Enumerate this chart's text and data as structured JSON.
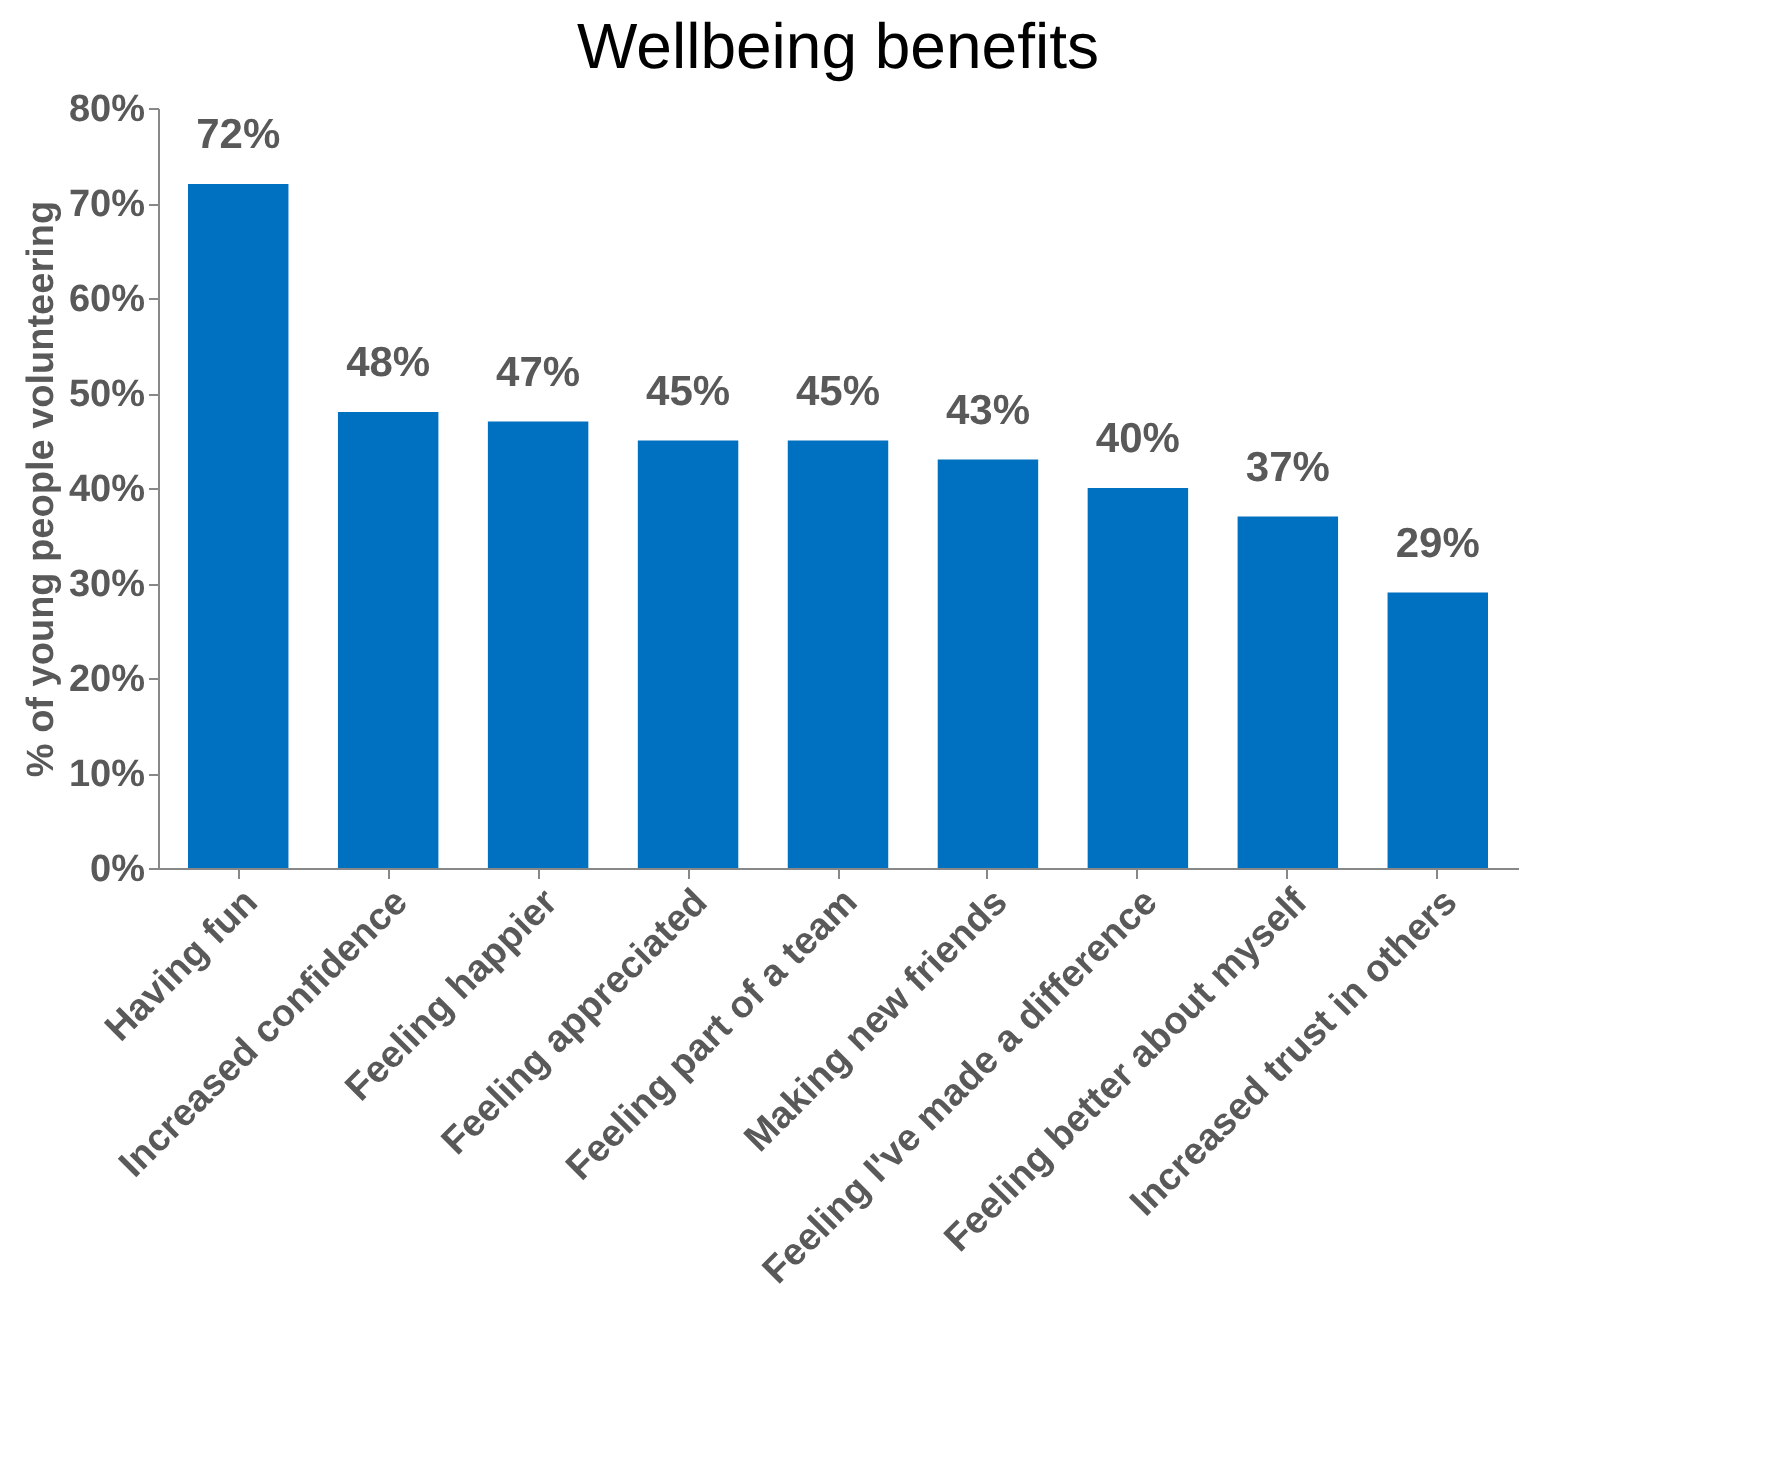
{
  "chart_data": {
    "type": "bar",
    "title": "Wellbeing benefits",
    "ylabel": "% of young people volunteering",
    "categories": [
      "Having fun",
      "Increased confidence",
      "Feeling happier",
      "Feeling appreciated",
      "Feeling part of a team",
      "Making new friends",
      "Feeling I've made a difference",
      "Feeling better about myself",
      "Increased trust in others"
    ],
    "values": [
      72,
      48,
      47,
      45,
      45,
      43,
      40,
      37,
      29
    ],
    "value_labels": [
      "72%",
      "48%",
      "47%",
      "45%",
      "45%",
      "43%",
      "40%",
      "37%",
      "29%"
    ],
    "color": "#0070c0",
    "ylim": [
      0,
      80
    ],
    "yticks": [
      {
        "value": 0,
        "label": "0%"
      },
      {
        "value": 10,
        "label": "10%"
      },
      {
        "value": 20,
        "label": "20%"
      },
      {
        "value": 30,
        "label": "30%"
      },
      {
        "value": 40,
        "label": "40%"
      },
      {
        "value": 50,
        "label": "50%"
      },
      {
        "value": 60,
        "label": "60%"
      },
      {
        "value": 70,
        "label": "70%"
      },
      {
        "value": 80,
        "label": "80%"
      }
    ],
    "grid": false
  }
}
